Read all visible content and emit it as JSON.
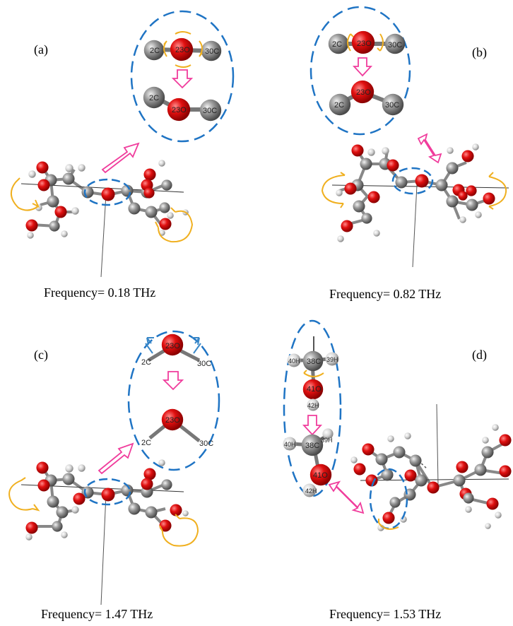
{
  "panels": [
    {
      "id": "a",
      "label": "(a)",
      "frequency": "Frequency= 0.18 THz"
    },
    {
      "id": "b",
      "label": "(b)",
      "frequency": "Frequency= 0.82 THz"
    },
    {
      "id": "c",
      "label": "(c)",
      "frequency": "Frequency= 1.47 THz"
    },
    {
      "id": "d",
      "label": "(d)",
      "frequency": "Frequency= 1.53 THz"
    }
  ],
  "atom_labels": {
    "c2": "2C",
    "o23": "23O",
    "c30": "30C",
    "c38": "38C",
    "h40": "40H",
    "h39": "39H",
    "o41": "41O",
    "h42": "42H"
  },
  "colors": {
    "oxygen": "#e01010",
    "carbon": "#8c8c8c",
    "hydrogen": "#d8d8d8",
    "dash_ellipse": "#1f74c4",
    "pink_arrow": "#f03c9c",
    "orange_arrow": "#f0b020",
    "blue_arrow": "#3a88c8"
  }
}
